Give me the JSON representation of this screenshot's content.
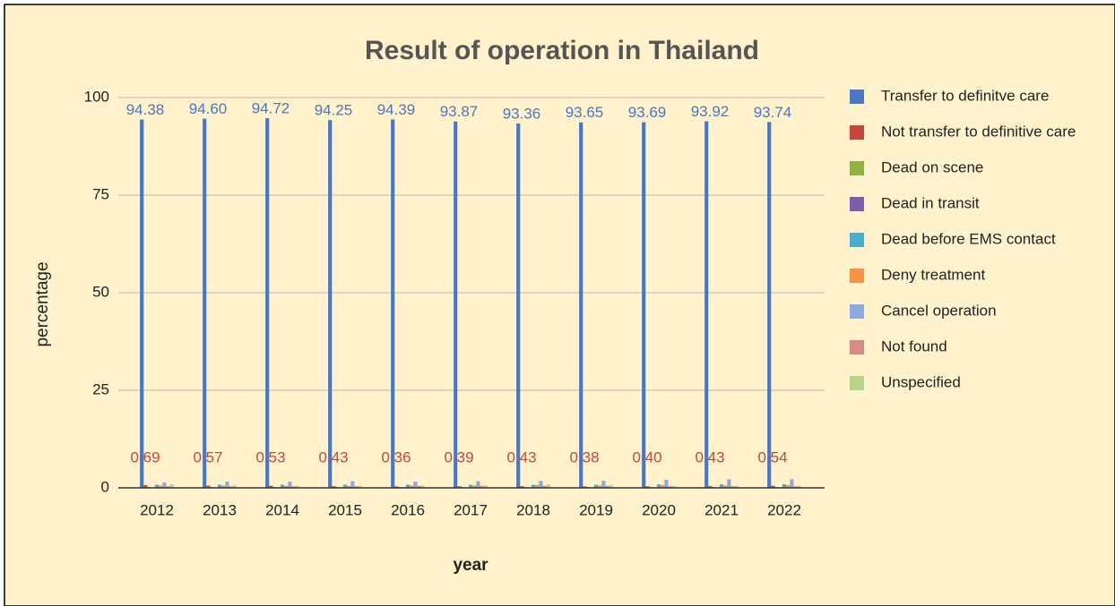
{
  "chart_data": {
    "type": "bar",
    "title": "Result of operation in Thailand",
    "x_label": "year",
    "y_label": "percentage",
    "categories": [
      "2012",
      "2013",
      "2014",
      "2015",
      "2016",
      "2017",
      "2018",
      "2019",
      "2020",
      "2021",
      "2022"
    ],
    "ylim": [
      0,
      100
    ],
    "yticks": [
      0,
      25,
      50,
      75,
      100
    ],
    "grid": true,
    "legend": "right",
    "series": [
      {
        "name": "Transfer to definitve care",
        "color": "#4a78c2",
        "values": [
          94.38,
          94.6,
          94.72,
          94.25,
          94.39,
          93.87,
          93.36,
          93.65,
          93.69,
          93.92,
          93.74
        ],
        "value_labels": [
          "94.38",
          "94.60",
          "94.72",
          "94.25",
          "94.39",
          "93.87",
          "93.36",
          "93.65",
          "93.69",
          "93.92",
          "93.74"
        ]
      },
      {
        "name": "Not transfer to definitive care",
        "color": "#c9463d",
        "values": [
          0.69,
          0.57,
          0.53,
          0.43,
          0.36,
          0.39,
          0.43,
          0.38,
          0.4,
          0.43,
          0.54
        ],
        "value_labels": [
          "0.69",
          "0.57",
          "0.53",
          "0.43",
          "0.36",
          "0.39",
          "0.43",
          "0.38",
          "0.40",
          "0.43",
          "0.54"
        ]
      },
      {
        "name": "Dead on scene",
        "color": "#8fb24a",
        "values": [
          0.2,
          0.2,
          0.2,
          0.2,
          0.2,
          0.2,
          0.2,
          0.2,
          0.2,
          0.2,
          0.2
        ]
      },
      {
        "name": "Dead in transit",
        "color": "#7b5fad",
        "values": [
          0.1,
          0.1,
          0.1,
          0.1,
          0.1,
          0.1,
          0.1,
          0.1,
          0.1,
          0.1,
          0.1
        ]
      },
      {
        "name": "Dead before EMS contact",
        "color": "#4badc6",
        "values": [
          0.8,
          0.8,
          0.8,
          0.8,
          0.8,
          0.8,
          0.8,
          0.8,
          0.9,
          0.9,
          0.9
        ]
      },
      {
        "name": "Deny treatment",
        "color": "#f5924a",
        "values": [
          0.6,
          0.6,
          0.5,
          0.5,
          0.6,
          0.6,
          0.7,
          0.6,
          0.7,
          0.6,
          0.7
        ]
      },
      {
        "name": "Cancel operation",
        "color": "#8eaadb",
        "values": [
          1.4,
          1.6,
          1.6,
          1.7,
          1.6,
          1.7,
          1.8,
          1.8,
          2.1,
          2.2,
          2.2
        ]
      },
      {
        "name": "Not found",
        "color": "#d98a86",
        "values": [
          0.4,
          0.4,
          0.4,
          0.4,
          0.5,
          0.5,
          0.5,
          0.5,
          0.4,
          0.4,
          0.4
        ]
      },
      {
        "name": "Unspecified",
        "color": "#b8d48a",
        "values": [
          0.9,
          0.6,
          0.5,
          0.5,
          0.6,
          0.6,
          0.9,
          0.7,
          0.5,
          0.5,
          0.5
        ]
      }
    ]
  }
}
